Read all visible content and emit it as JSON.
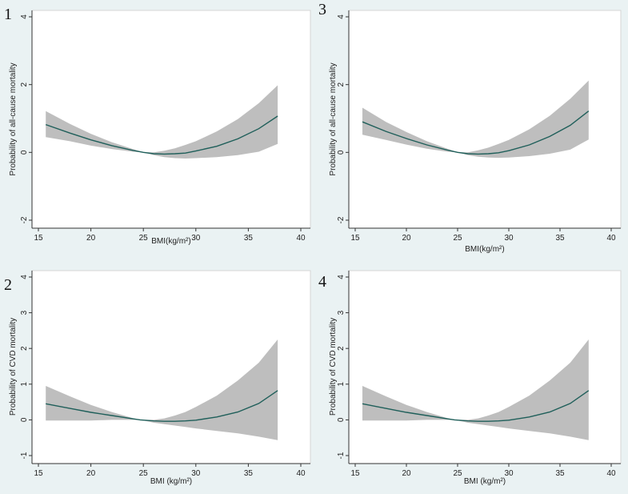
{
  "colors": {
    "background": "#eaf2f3",
    "plot_bg": "#ffffff",
    "band": "#bebebe",
    "line": "#1f5f5a",
    "axis": "#333333"
  },
  "chart_data": [
    {
      "type": "line",
      "panel_label": "1",
      "title": "",
      "xlabel": "BMI(kg/m²)",
      "ylabel": "Probability of all-cause mortality",
      "xlim": [
        15,
        40
      ],
      "ylim": [
        -2,
        4
      ],
      "xticks": [
        "15",
        "20",
        "25",
        "30",
        "35",
        "40"
      ],
      "yticks": [
        "-2",
        "0",
        "2",
        "4"
      ],
      "grid": false,
      "series": [
        {
          "name": "estimate",
          "x": [
            15.7,
            18,
            20,
            22,
            24,
            25,
            26,
            27,
            28,
            29,
            30,
            32,
            34,
            36,
            37.8
          ],
          "y": [
            0.82,
            0.57,
            0.37,
            0.2,
            0.06,
            0.0,
            -0.04,
            -0.05,
            -0.04,
            -0.02,
            0.04,
            0.18,
            0.4,
            0.7,
            1.07
          ]
        },
        {
          "name": "ci_upper",
          "x": [
            15.7,
            18,
            20,
            22,
            24,
            25,
            26,
            27,
            28,
            29,
            30,
            32,
            34,
            36,
            37.8
          ],
          "y": [
            1.22,
            0.84,
            0.55,
            0.3,
            0.1,
            0.0,
            0.0,
            0.05,
            0.12,
            0.22,
            0.33,
            0.62,
            0.98,
            1.45,
            1.98
          ]
        },
        {
          "name": "ci_lower",
          "x": [
            15.7,
            18,
            20,
            22,
            24,
            25,
            26,
            27,
            28,
            29,
            30,
            32,
            34,
            36,
            37.8
          ],
          "y": [
            0.45,
            0.33,
            0.2,
            0.1,
            0.02,
            0.0,
            -0.08,
            -0.14,
            -0.17,
            -0.18,
            -0.17,
            -0.14,
            -0.08,
            0.02,
            0.25
          ]
        }
      ]
    },
    {
      "type": "line",
      "panel_label": "3",
      "title": "",
      "xlabel": "BMI(kg/m²)",
      "ylabel": "Probability of all-cause mortality",
      "xlim": [
        15,
        40
      ],
      "ylim": [
        -2,
        4
      ],
      "xticks": [
        "15",
        "20",
        "25",
        "30",
        "35",
        "40"
      ],
      "yticks": [
        "-2",
        "0",
        "2",
        "4"
      ],
      "grid": false,
      "series": [
        {
          "name": "estimate",
          "x": [
            15.7,
            18,
            20,
            22,
            24,
            25,
            26,
            27,
            28,
            29,
            30,
            32,
            34,
            36,
            37.8
          ],
          "y": [
            0.9,
            0.62,
            0.41,
            0.22,
            0.07,
            0.0,
            -0.04,
            -0.05,
            -0.04,
            -0.01,
            0.05,
            0.22,
            0.47,
            0.8,
            1.22
          ]
        },
        {
          "name": "ci_upper",
          "x": [
            15.7,
            18,
            20,
            22,
            24,
            25,
            26,
            27,
            28,
            29,
            30,
            32,
            34,
            36,
            37.8
          ],
          "y": [
            1.32,
            0.9,
            0.6,
            0.33,
            0.11,
            0.0,
            0.0,
            0.06,
            0.14,
            0.25,
            0.37,
            0.68,
            1.08,
            1.58,
            2.12
          ]
        },
        {
          "name": "ci_lower",
          "x": [
            15.7,
            18,
            20,
            22,
            24,
            25,
            26,
            27,
            28,
            29,
            30,
            32,
            34,
            36,
            37.8
          ],
          "y": [
            0.52,
            0.37,
            0.23,
            0.11,
            0.02,
            0.0,
            -0.08,
            -0.13,
            -0.15,
            -0.16,
            -0.15,
            -0.11,
            -0.04,
            0.08,
            0.38
          ]
        }
      ]
    },
    {
      "type": "line",
      "panel_label": "2",
      "title": "",
      "xlabel": "BMI (kg/m²)",
      "ylabel": "Probability of CVD mortality",
      "xlim": [
        15,
        40
      ],
      "ylim": [
        -1,
        4
      ],
      "xticks": [
        "15",
        "20",
        "25",
        "30",
        "35",
        "40"
      ],
      "yticks": [
        "-1",
        "0",
        "1",
        "2",
        "3",
        "4"
      ],
      "grid": false,
      "series": [
        {
          "name": "estimate",
          "x": [
            15.7,
            18,
            20,
            22,
            24,
            24.7,
            26,
            27,
            28,
            29,
            30,
            32,
            34,
            36,
            37.8
          ],
          "y": [
            0.45,
            0.32,
            0.21,
            0.12,
            0.03,
            0.0,
            -0.03,
            -0.04,
            -0.04,
            -0.03,
            -0.01,
            0.08,
            0.22,
            0.46,
            0.82
          ]
        },
        {
          "name": "ci_upper",
          "x": [
            15.7,
            18,
            20,
            22,
            24,
            24.7,
            26,
            27,
            28,
            29,
            30,
            32,
            34,
            36,
            37.8
          ],
          "y": [
            0.95,
            0.66,
            0.42,
            0.22,
            0.05,
            0.0,
            0.0,
            0.04,
            0.12,
            0.22,
            0.36,
            0.68,
            1.1,
            1.6,
            2.25
          ]
        },
        {
          "name": "ci_lower",
          "x": [
            15.7,
            18,
            20,
            22,
            24,
            24.7,
            26,
            27,
            28,
            29,
            30,
            32,
            34,
            36,
            37.8
          ],
          "y": [
            -0.02,
            -0.02,
            -0.02,
            0.0,
            0.0,
            0.0,
            -0.08,
            -0.12,
            -0.16,
            -0.2,
            -0.24,
            -0.31,
            -0.38,
            -0.47,
            -0.57
          ]
        }
      ]
    },
    {
      "type": "line",
      "panel_label": "4",
      "title": "",
      "xlabel": "BMI (kg/m²)",
      "ylabel": "Probability of CVD mortality",
      "xlim": [
        15,
        40
      ],
      "ylim": [
        -1,
        4
      ],
      "xticks": [
        "15",
        "20",
        "25",
        "30",
        "35",
        "40"
      ],
      "yticks": [
        "-1",
        "0",
        "1",
        "2",
        "3",
        "4"
      ],
      "grid": false,
      "series": [
        {
          "name": "estimate",
          "x": [
            15.7,
            18,
            20,
            22,
            24,
            24.7,
            26,
            27,
            28,
            29,
            30,
            32,
            34,
            36,
            37.8
          ],
          "y": [
            0.45,
            0.32,
            0.21,
            0.12,
            0.03,
            0.0,
            -0.03,
            -0.04,
            -0.04,
            -0.03,
            -0.01,
            0.08,
            0.22,
            0.46,
            0.82
          ]
        },
        {
          "name": "ci_upper",
          "x": [
            15.7,
            18,
            20,
            22,
            24,
            24.7,
            26,
            27,
            28,
            29,
            30,
            32,
            34,
            36,
            37.8
          ],
          "y": [
            0.95,
            0.66,
            0.42,
            0.22,
            0.05,
            0.0,
            0.0,
            0.04,
            0.12,
            0.22,
            0.36,
            0.68,
            1.1,
            1.6,
            2.25
          ]
        },
        {
          "name": "ci_lower",
          "x": [
            15.7,
            18,
            20,
            22,
            24,
            24.7,
            26,
            27,
            28,
            29,
            30,
            32,
            34,
            36,
            37.8
          ],
          "y": [
            -0.02,
            -0.02,
            -0.02,
            0.0,
            0.0,
            0.0,
            -0.08,
            -0.12,
            -0.16,
            -0.2,
            -0.24,
            -0.31,
            -0.38,
            -0.47,
            -0.57
          ]
        }
      ]
    }
  ]
}
